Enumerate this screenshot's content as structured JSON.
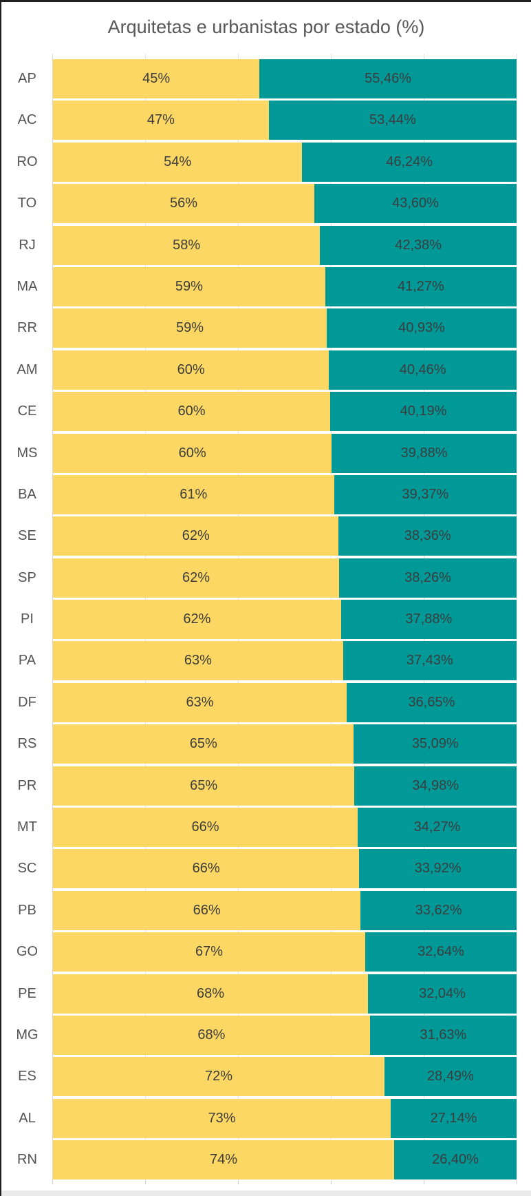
{
  "title": "Arquitetas e urbanistas por estado (%)",
  "colors": {
    "yellow": "#FCD763",
    "teal": "#019898",
    "title_text": "#595959",
    "category_text": "#545454",
    "data_label_text": "#3d3d3d",
    "gridline": "#e3e3e3",
    "axis_line": "#d9d9d9",
    "frame_border": "#1f1f1f",
    "bottom_strip": "#ebebeb"
  },
  "chart_data": {
    "type": "bar",
    "orientation": "horizontal-stacked",
    "title": "Arquitetas e urbanistas por estado (%)",
    "xlabel": "",
    "ylabel": "",
    "xlim": [
      0,
      100
    ],
    "grid": true,
    "gridline_pcts": [
      0,
      20,
      40,
      60,
      80,
      100
    ],
    "legend": "none",
    "categories": [
      "AP",
      "AC",
      "RO",
      "TO",
      "RJ",
      "MA",
      "RR",
      "AM",
      "CE",
      "MS",
      "BA",
      "SE",
      "SP",
      "PI",
      "PA",
      "DF",
      "RS",
      "PR",
      "MT",
      "SC",
      "PB",
      "GO",
      "PE",
      "MG",
      "ES",
      "AL",
      "RN"
    ],
    "series": [
      {
        "name": "yellow-segment",
        "values": [
          44.54,
          46.56,
          53.76,
          56.4,
          57.62,
          58.73,
          59.07,
          59.54,
          59.81,
          60.12,
          60.63,
          61.64,
          61.74,
          62.12,
          62.57,
          63.35,
          64.91,
          65.02,
          65.73,
          66.08,
          66.38,
          67.36,
          67.96,
          68.37,
          71.51,
          72.86,
          73.6
        ],
        "labels": [
          "45%",
          "47%",
          "54%",
          "56%",
          "58%",
          "59%",
          "59%",
          "60%",
          "60%",
          "60%",
          "61%",
          "62%",
          "62%",
          "62%",
          "63%",
          "63%",
          "65%",
          "65%",
          "66%",
          "66%",
          "66%",
          "67%",
          "68%",
          "68%",
          "72%",
          "73%",
          "74%"
        ]
      },
      {
        "name": "teal-segment",
        "values": [
          55.46,
          53.44,
          46.24,
          43.6,
          42.38,
          41.27,
          40.93,
          40.46,
          40.19,
          39.88,
          39.37,
          38.36,
          38.26,
          37.88,
          37.43,
          36.65,
          35.09,
          34.98,
          34.27,
          33.92,
          33.62,
          32.64,
          32.04,
          31.63,
          28.49,
          27.14,
          26.4
        ],
        "labels": [
          "55,46%",
          "53,44%",
          "46,24%",
          "43,60%",
          "42,38%",
          "41,27%",
          "40,93%",
          "40,46%",
          "40,19%",
          "39,88%",
          "39,37%",
          "38,36%",
          "38,26%",
          "37,88%",
          "37,43%",
          "36,65%",
          "35,09%",
          "34,98%",
          "34,27%",
          "33,92%",
          "33,62%",
          "32,64%",
          "32,04%",
          "31,63%",
          "28,49%",
          "27,14%",
          "26,40%"
        ]
      }
    ]
  }
}
